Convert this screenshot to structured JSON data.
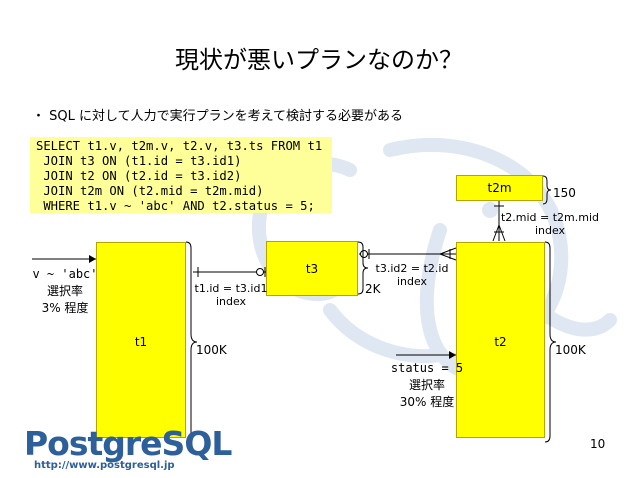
{
  "slide": {
    "title": "現状が悪いプランなのか？",
    "bullet": "SQL に対して人力で実行プランを考えて検討する必要がある",
    "page_number": "10"
  },
  "sql": {
    "lines": [
      "SELECT t1.v, t2m.v, t2.v, t3.ts FROM t1",
      " JOIN t3 ON (t1.id = t3.id1)",
      " JOIN t2 ON (t2.id = t3.id2)",
      " JOIN t2m ON (t2.mid = t2m.mid)",
      " WHERE t1.v ~ 'abc' AND t2.status = 5;"
    ]
  },
  "tables": {
    "t1": {
      "name": "t1",
      "rows": "100K"
    },
    "t2": {
      "name": "t2",
      "rows": "100K"
    },
    "t3": {
      "name": "t3",
      "rows": "2K"
    },
    "t2m": {
      "name": "t2m",
      "rows": "150"
    }
  },
  "joins": {
    "t1_t3": {
      "condition": "t1.id = t3.id1",
      "index": "index"
    },
    "t3_t2": {
      "condition": "t3.id2 = t2.id",
      "index": "index"
    },
    "t2_t2m": {
      "condition": "t2.mid = t2m.mid",
      "index": "index"
    }
  },
  "filters": {
    "t1": {
      "condition": "v ~ 'abc'",
      "label": "選択率",
      "value": "3% 程度"
    },
    "t2": {
      "condition": "status = 5",
      "label": "選択率",
      "value": "30% 程度"
    }
  },
  "logo": {
    "name": "PostgreSQL",
    "url": "http://www.postgresql.jp"
  },
  "colors": {
    "table_fill": "#ffff00",
    "sql_bg": "#ffff99",
    "logo_blue": "#2d5f9a",
    "watermark": "#e8eef6"
  }
}
